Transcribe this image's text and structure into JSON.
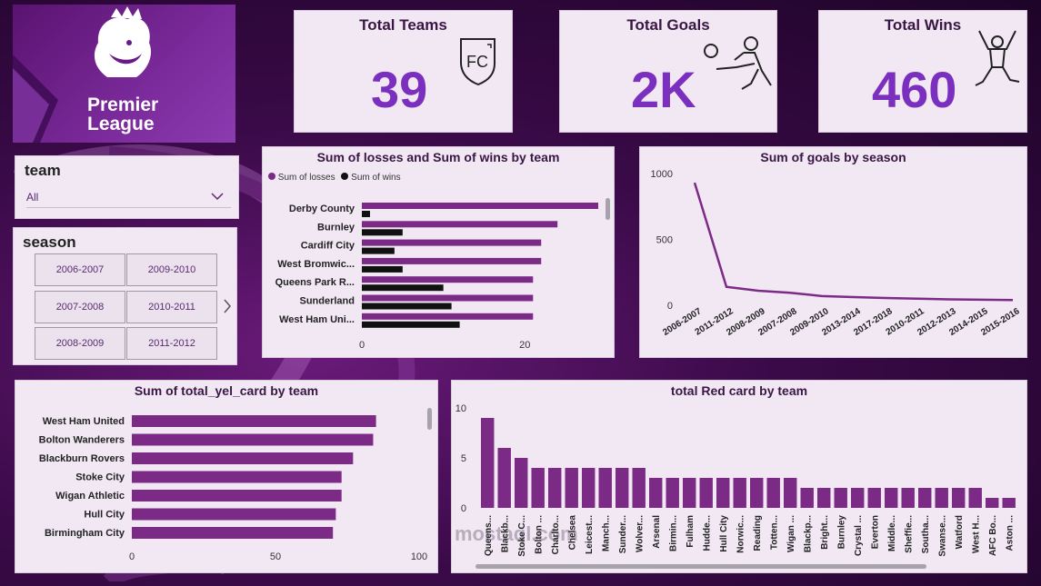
{
  "brand": {
    "line1": "Premier",
    "line2": "League"
  },
  "kpis": {
    "teams": {
      "title": "Total Teams",
      "value": "39",
      "icon_text": "FC"
    },
    "goals": {
      "title": "Total Goals",
      "value": "2K"
    },
    "wins": {
      "title": "Total Wins",
      "value": "460"
    }
  },
  "team_slicer": {
    "title": "team",
    "selected": "All"
  },
  "season_slicer": {
    "title": "season",
    "options": [
      "2006-2007",
      "2009-2010",
      "2007-2008",
      "2010-2011",
      "2008-2009",
      "2011-2012"
    ]
  },
  "watermark": "mostaql.com",
  "colors": {
    "purple": "#7b2b86",
    "black": "#111111",
    "kpi": "#7b2fbe"
  },
  "chart_data": [
    {
      "type": "bar",
      "title": "Sum of losses and Sum of wins by team",
      "orientation": "horizontal",
      "categories": [
        "Derby County",
        "Burnley",
        "Cardiff City",
        "West Bromwic...",
        "Queens Park R...",
        "Sunderland",
        "West Ham Uni..."
      ],
      "series": [
        {
          "name": "Sum of losses",
          "values": [
            29,
            24,
            22,
            22,
            21,
            21,
            21
          ]
        },
        {
          "name": "Sum of wins",
          "values": [
            1,
            5,
            4,
            5,
            10,
            11,
            12
          ]
        }
      ],
      "xlim": [
        0,
        29
      ],
      "xticks": [
        "0",
        "20"
      ],
      "legend": "top-left"
    },
    {
      "type": "line",
      "title": "Sum of goals by season",
      "categories": [
        "2006-2007",
        "2011-2012",
        "2008-2009",
        "2007-2008",
        "2009-2010",
        "2013-2014",
        "2017-2018",
        "2010-2011",
        "2012-2013",
        "2014-2015",
        "2015-2016"
      ],
      "values": [
        930,
        140,
        110,
        95,
        70,
        62,
        55,
        50,
        45,
        42,
        40
      ],
      "ylim": [
        0,
        1000
      ],
      "yticks": [
        "0",
        "500",
        "1000"
      ]
    },
    {
      "type": "bar",
      "title": "Sum of total_yel_card by team",
      "orientation": "horizontal",
      "categories": [
        "West Ham United",
        "Bolton Wanderers",
        "Blackburn Rovers",
        "Stoke City",
        "Wigan Athletic",
        "Hull City",
        "Birmingham City"
      ],
      "values": [
        85,
        84,
        77,
        73,
        73,
        71,
        70
      ],
      "xlim": [
        0,
        100
      ],
      "xticks": [
        "0",
        "50",
        "100"
      ]
    },
    {
      "type": "bar",
      "title": "total Red card by team",
      "categories": [
        "Queens...",
        "Blackb...",
        "Stoke C...",
        "Bolton ...",
        "Charlto...",
        "Chelsea",
        "Leicest...",
        "Manch...",
        "Sunder...",
        "Wolver...",
        "Arsenal",
        "Birmin...",
        "Fulham",
        "Hudde...",
        "Hull City",
        "Norwic...",
        "Reading",
        "Totten...",
        "Wigan ...",
        "Blackp...",
        "Bright...",
        "Burnley",
        "Crystal ...",
        "Everton",
        "Middle...",
        "Sheffie...",
        "Southa...",
        "Swanse...",
        "Watford",
        "West H...",
        "AFC Bo...",
        "Aston ..."
      ],
      "values": [
        9,
        6,
        5,
        4,
        4,
        4,
        4,
        4,
        4,
        4,
        3,
        3,
        3,
        3,
        3,
        3,
        3,
        3,
        3,
        2,
        2,
        2,
        2,
        2,
        2,
        2,
        2,
        2,
        2,
        2,
        1,
        1
      ],
      "ylim": [
        0,
        10
      ],
      "yticks": [
        "0",
        "5",
        "10"
      ]
    }
  ]
}
